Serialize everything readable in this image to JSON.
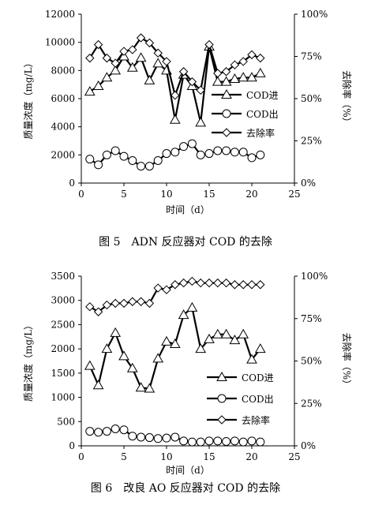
{
  "charts": [
    {
      "type": "line",
      "xlabel": "时间（d）",
      "ylabel": "质量浓度（mg/L）",
      "y2label": "去除率（%）",
      "xlim": [
        0,
        25
      ],
      "xticks": [
        0,
        5,
        10,
        15,
        20,
        25
      ],
      "ylim": [
        0,
        12000
      ],
      "yticks": [
        0,
        2000,
        4000,
        6000,
        8000,
        10000,
        12000
      ],
      "y2lim": [
        0,
        100
      ],
      "y2ticks": [
        "0%",
        "25%",
        "50%",
        "75%",
        "100%"
      ],
      "legend": [
        "COD进",
        "COD出",
        "去除率"
      ],
      "x": [
        1,
        2,
        3,
        4,
        5,
        6,
        7,
        8,
        9,
        10,
        11,
        12,
        13,
        14,
        15,
        16,
        17,
        18,
        19,
        20,
        21
      ],
      "series": [
        {
          "name": "COD进",
          "marker": "triangle",
          "axis": "left",
          "values": [
            6500,
            6900,
            7500,
            8000,
            9000,
            8200,
            8900,
            7300,
            8500,
            8000,
            4500,
            7700,
            6900,
            4300,
            9700,
            7200,
            7200,
            7400,
            7500,
            7500,
            7800
          ]
        },
        {
          "name": "COD出",
          "marker": "circle",
          "axis": "left",
          "values": [
            1700,
            1300,
            2000,
            2300,
            1900,
            1600,
            1200,
            1200,
            1600,
            2100,
            2200,
            2600,
            2800,
            2000,
            2100,
            2300,
            2300,
            2200,
            2200,
            1800,
            2000
          ]
        },
        {
          "name": "去除率",
          "marker": "diamond",
          "axis": "right",
          "values": [
            74,
            82,
            74,
            71,
            78,
            79,
            86,
            83,
            77,
            72,
            52,
            66,
            60,
            55,
            82,
            65,
            66,
            70,
            72,
            76,
            74
          ]
        }
      ],
      "caption": "图 5　ADN 反应器对 COD 的去除"
    },
    {
      "type": "line",
      "xlabel": "时间（d）",
      "ylabel": "质量浓度（mg/L）",
      "y2label": "去除率（%）",
      "xlim": [
        0,
        25
      ],
      "xticks": [
        0,
        5,
        10,
        15,
        20,
        25
      ],
      "ylim": [
        0,
        3500
      ],
      "yticks": [
        0,
        500,
        1000,
        1500,
        2000,
        2500,
        3000,
        3500
      ],
      "y2lim": [
        0,
        100
      ],
      "y2ticks": [
        "0%",
        "25%",
        "50%",
        "75%",
        "100%"
      ],
      "legend": [
        "COD进",
        "COD出",
        "去除率"
      ],
      "x": [
        1,
        2,
        3,
        4,
        5,
        6,
        7,
        8,
        9,
        10,
        11,
        12,
        13,
        14,
        15,
        16,
        17,
        18,
        19,
        20,
        21
      ],
      "series": [
        {
          "name": "COD进",
          "marker": "triangle",
          "axis": "left",
          "values": [
            1650,
            1250,
            2000,
            2330,
            1850,
            1600,
            1200,
            1180,
            1800,
            2150,
            2100,
            2700,
            2850,
            2000,
            2200,
            2300,
            2300,
            2180,
            2300,
            1780,
            2000
          ]
        },
        {
          "name": "COD出",
          "marker": "circle",
          "axis": "left",
          "values": [
            300,
            280,
            300,
            350,
            330,
            200,
            180,
            170,
            150,
            160,
            180,
            100,
            80,
            80,
            100,
            100,
            90,
            100,
            80,
            100,
            80
          ]
        },
        {
          "name": "去除率",
          "marker": "diamond",
          "axis": "right",
          "values": [
            82,
            79,
            83,
            84,
            84,
            85,
            85,
            84,
            93,
            92,
            95,
            96,
            97,
            96,
            96,
            96,
            96,
            95,
            95,
            95,
            95
          ]
        }
      ],
      "caption": "图 6　改良 AO 反应器对 COD 的去除"
    }
  ]
}
